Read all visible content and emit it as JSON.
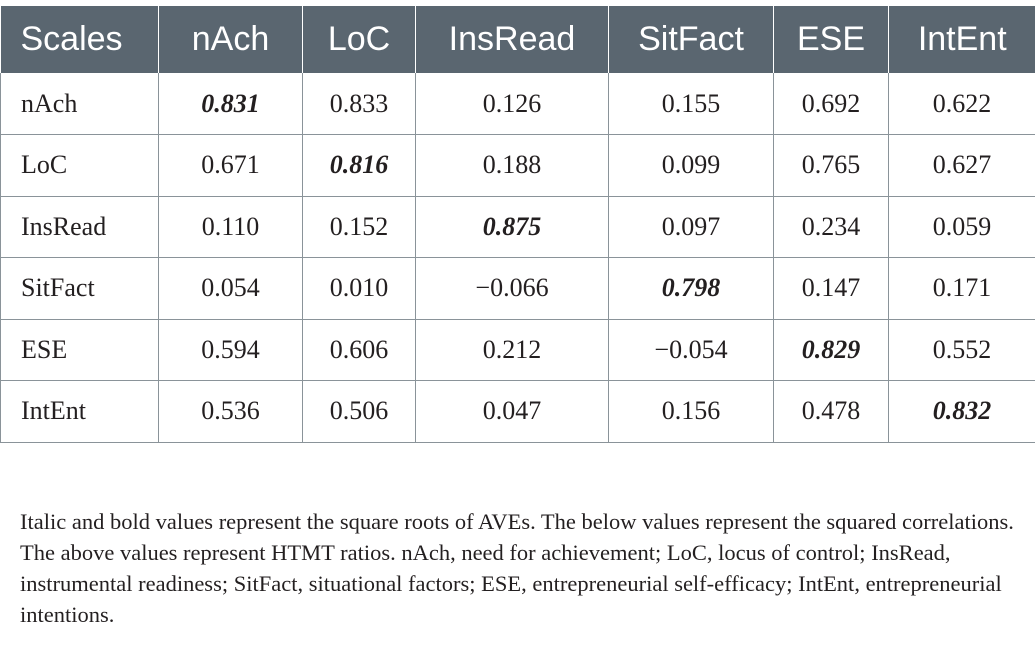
{
  "table": {
    "headers": [
      "Scales",
      "nAch",
      "LoC",
      "InsRead",
      "SitFact",
      "ESE",
      "IntEnt"
    ],
    "rows": [
      {
        "scale": "nAch",
        "values": [
          "0.831",
          "0.833",
          "0.126",
          "0.155",
          "0.692",
          "0.622"
        ],
        "diag_index": 0
      },
      {
        "scale": "LoC",
        "values": [
          "0.671",
          "0.816",
          "0.188",
          "0.099",
          "0.765",
          "0.627"
        ],
        "diag_index": 1
      },
      {
        "scale": "InsRead",
        "values": [
          "0.110",
          "0.152",
          "0.875",
          "0.097",
          "0.234",
          "0.059"
        ],
        "diag_index": 2
      },
      {
        "scale": "SitFact",
        "values": [
          "0.054",
          "0.010",
          "−0.066",
          "0.798",
          "0.147",
          "0.171"
        ],
        "diag_index": 3
      },
      {
        "scale": "ESE",
        "values": [
          "0.594",
          "0.606",
          "0.212",
          "−0.054",
          "0.829",
          "0.552"
        ],
        "diag_index": 4
      },
      {
        "scale": "IntEnt",
        "values": [
          "0.536",
          "0.506",
          "0.047",
          "0.156",
          "0.478",
          "0.832"
        ],
        "diag_index": 5
      }
    ]
  },
  "colors": {
    "header_bg": "#5a6670",
    "header_text": "#ffffff",
    "grid": "#8a9399",
    "text": "#231f20"
  },
  "footnote": "Italic and bold values represent the square roots of AVEs. The below values represent the squared correlations. The above values represent HTMT ratios. nAch, need for achievement; LoC, locus of control; InsRead, instrumental readiness; SitFact, situational factors; ESE, entrepreneurial self-efficacy; IntEnt, entrepreneurial intentions."
}
